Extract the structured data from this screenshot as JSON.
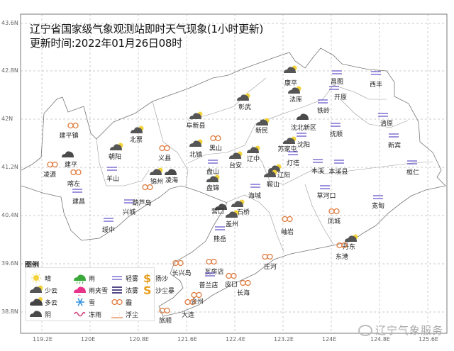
{
  "title": "辽宁省国家级气象观测站即时天气现象(1小时更新)",
  "update_time": "更新时间:2022年01月26日08时",
  "axes": {
    "lat_ticks": [
      "43.6N",
      "42.8N",
      "42N",
      "41.2N",
      "40.4N",
      "39.6N",
      "38.8N"
    ],
    "lon_ticks": [
      "119.2E",
      "120E",
      "120.8E",
      "121.6E",
      "122.4E",
      "123.2E",
      "124E",
      "124.8E",
      "125.6E"
    ],
    "grid": true
  },
  "colors": {
    "sun": "#f2d33a",
    "cloud": "#555555",
    "fog": "#6a5acd",
    "haze": "#e07a3c",
    "rain": "#3aa83a",
    "sleet": "#e8338a",
    "snow": "#2f8fe0",
    "freezing_rain": "#d0407a",
    "sand": "#e8a020"
  },
  "legend": {
    "title": "图例",
    "items": [
      {
        "key": "sunny",
        "label": "晴"
      },
      {
        "key": "few-clouds",
        "label": "少云"
      },
      {
        "key": "partly-cloudy",
        "label": "多云"
      },
      {
        "key": "overcast",
        "label": "阴"
      },
      {
        "key": "rain",
        "label": "雨"
      },
      {
        "key": "sleet",
        "label": "雨夹雪"
      },
      {
        "key": "snow",
        "label": "雪"
      },
      {
        "key": "freezing-rain",
        "label": "冻雨"
      },
      {
        "key": "light-fog",
        "label": "轻雾"
      },
      {
        "key": "dense-fog",
        "label": "浓雾"
      },
      {
        "key": "haze",
        "label": "霾"
      },
      {
        "key": "floating-dust",
        "label": "浮尘"
      },
      {
        "key": "blowing-sand",
        "label": "扬沙"
      },
      {
        "key": "sandstorm",
        "label": "沙尘暴"
      }
    ]
  },
  "stations": [
    {
      "name": "建平镇",
      "weather": "haze"
    },
    {
      "name": "建平",
      "weather": "overcast"
    },
    {
      "name": "凌源",
      "weather": "haze"
    },
    {
      "name": "喀左",
      "weather": "haze"
    },
    {
      "name": "建昌",
      "weather": "light-fog"
    },
    {
      "name": "朝阳",
      "weather": "few-clouds"
    },
    {
      "name": "北票",
      "weather": "few-clouds"
    },
    {
      "name": "羊山",
      "weather": "light-fog"
    },
    {
      "name": "阜新县",
      "weather": "few-clouds"
    },
    {
      "name": "义县",
      "weather": "haze"
    },
    {
      "name": "北镇",
      "weather": "few-clouds"
    },
    {
      "name": "黑山",
      "weather": "haze"
    },
    {
      "name": "锦州",
      "weather": "few-clouds"
    },
    {
      "name": "凌海",
      "weather": "overcast"
    },
    {
      "name": "葫芦岛",
      "weather": "light-fog"
    },
    {
      "name": "兴城",
      "weather": ""
    },
    {
      "name": "绥中",
      "weather": "light-fog"
    },
    {
      "name": "盘山",
      "weather": "light-fog"
    },
    {
      "name": "盘锦",
      "weather": "few-clouds"
    },
    {
      "name": "台安",
      "weather": "few-clouds"
    },
    {
      "name": "辽中",
      "weather": "few-clouds"
    },
    {
      "name": "彰武",
      "weather": "few-clouds"
    },
    {
      "name": "康平",
      "weather": "few-clouds"
    },
    {
      "name": "法库",
      "weather": "few-clouds"
    },
    {
      "name": "新民",
      "weather": "few-clouds"
    },
    {
      "name": "沈北新区",
      "weather": "overcast"
    },
    {
      "name": "苏家屯",
      "weather": "few-clouds"
    },
    {
      "name": "沈阳",
      "weather": "light-fog"
    },
    {
      "name": "灯塔",
      "weather": "light-fog"
    },
    {
      "name": "辽阳",
      "weather": "few-clouds"
    },
    {
      "name": "鞍山",
      "weather": "few-clouds"
    },
    {
      "name": "海城",
      "weather": "light-fog"
    },
    {
      "name": "营口",
      "weather": "overcast"
    },
    {
      "name": "石桥",
      "weather": "few-clouds"
    },
    {
      "name": "盖州",
      "weather": "few-clouds"
    },
    {
      "name": "熊岳",
      "weather": "light-fog"
    },
    {
      "name": "昌图",
      "weather": "light-fog"
    },
    {
      "name": "开原",
      "weather": "light-fog"
    },
    {
      "name": "铁岭",
      "weather": "light-fog"
    },
    {
      "name": "西丰",
      "weather": "light-fog"
    },
    {
      "name": "清原",
      "weather": "light-fog"
    },
    {
      "name": "抚顺",
      "weather": "light-fog"
    },
    {
      "name": "新宾",
      "weather": "light-fog"
    },
    {
      "name": "本溪",
      "weather": "light-fog"
    },
    {
      "name": "本溪县",
      "weather": "light-fog"
    },
    {
      "name": "桓仁",
      "weather": "light-fog"
    },
    {
      "name": "草河口",
      "weather": "light-fog"
    },
    {
      "name": "宽甸",
      "weather": "light-fog"
    },
    {
      "name": "凤城",
      "weather": "haze"
    },
    {
      "name": "岫岩",
      "weather": "haze"
    },
    {
      "name": "丹东",
      "weather": "few-clouds"
    },
    {
      "name": "东港",
      "weather": "haze"
    },
    {
      "name": "庄河",
      "weather": "haze"
    },
    {
      "name": "瓦房店",
      "weather": "haze"
    },
    {
      "name": "普兰店",
      "weather": "light-fog"
    },
    {
      "name": "长兴岛",
      "weather": "haze"
    },
    {
      "name": "皮口",
      "weather": "haze"
    },
    {
      "name": "长海",
      "weather": "haze"
    },
    {
      "name": "金州",
      "weather": "haze"
    },
    {
      "name": "大连",
      "weather": "haze"
    },
    {
      "name": "旅顺",
      "weather": "haze"
    }
  ],
  "watermark": "辽宁气象服务"
}
